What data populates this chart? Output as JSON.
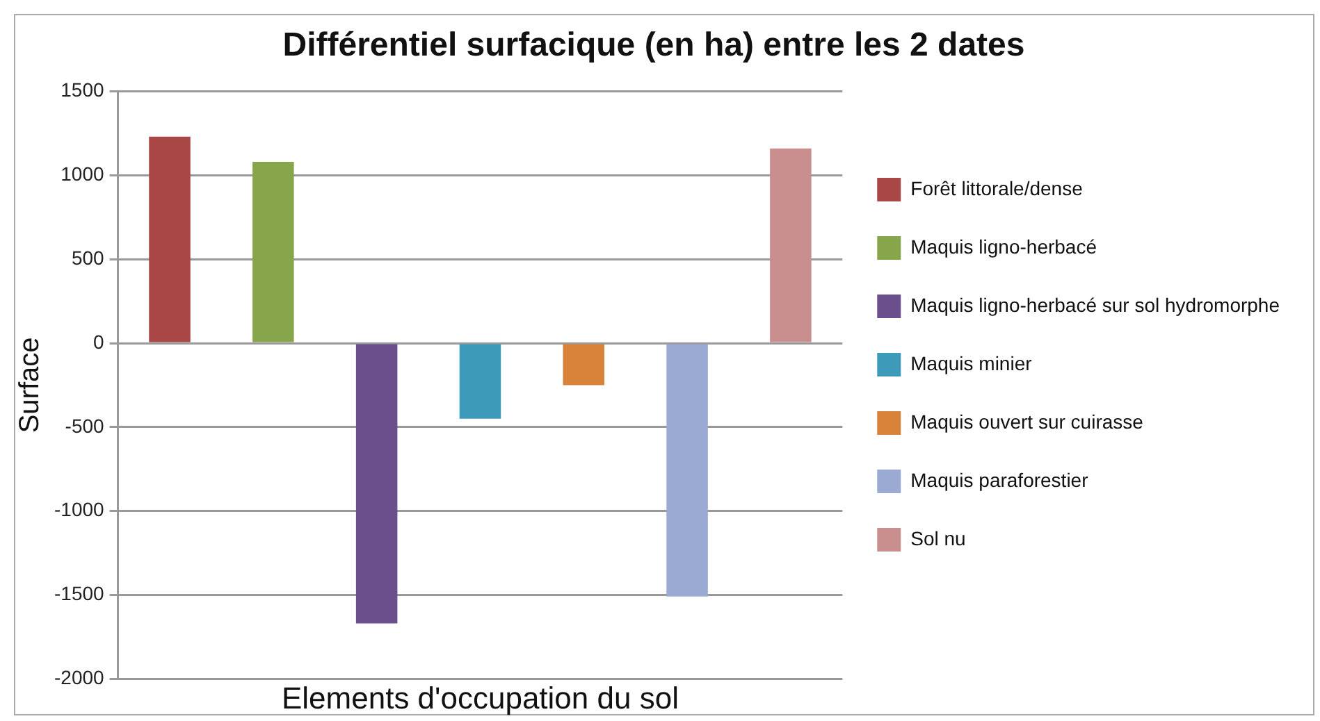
{
  "chart_data": {
    "type": "bar",
    "title": "Différentiel surfacique (en ha) entre les 2 dates",
    "xlabel": "Elements d'occupation du sol",
    "ylabel": "Surface",
    "categories": [
      null
    ],
    "series": [
      {
        "name": "Forêt littorale/dense",
        "color": "#a84746",
        "values": [
          1230
        ]
      },
      {
        "name": "Maquis ligno-herbacé",
        "color": "#87a64c",
        "values": [
          1080
        ]
      },
      {
        "name": "Maquis ligno-herbacé sur sol hydromorphe",
        "color": "#6a4f8c",
        "values": [
          -1670
        ]
      },
      {
        "name": "Maquis minier",
        "color": "#3e9ab9",
        "values": [
          -450
        ]
      },
      {
        "name": "Maquis ouvert sur cuirasse",
        "color": "#d9823a",
        "values": [
          -250
        ]
      },
      {
        "name": "Maquis paraforestier",
        "color": "#9aaad2",
        "values": [
          -1510
        ]
      },
      {
        "name": "Sol nu",
        "color": "#c98e8e",
        "values": [
          1160
        ]
      }
    ],
    "ylim": [
      -2000,
      1500
    ],
    "yticks": [
      -2000,
      -1500,
      -1000,
      -500,
      0,
      500,
      1000,
      1500
    ],
    "grid": "y",
    "legend": "right"
  }
}
